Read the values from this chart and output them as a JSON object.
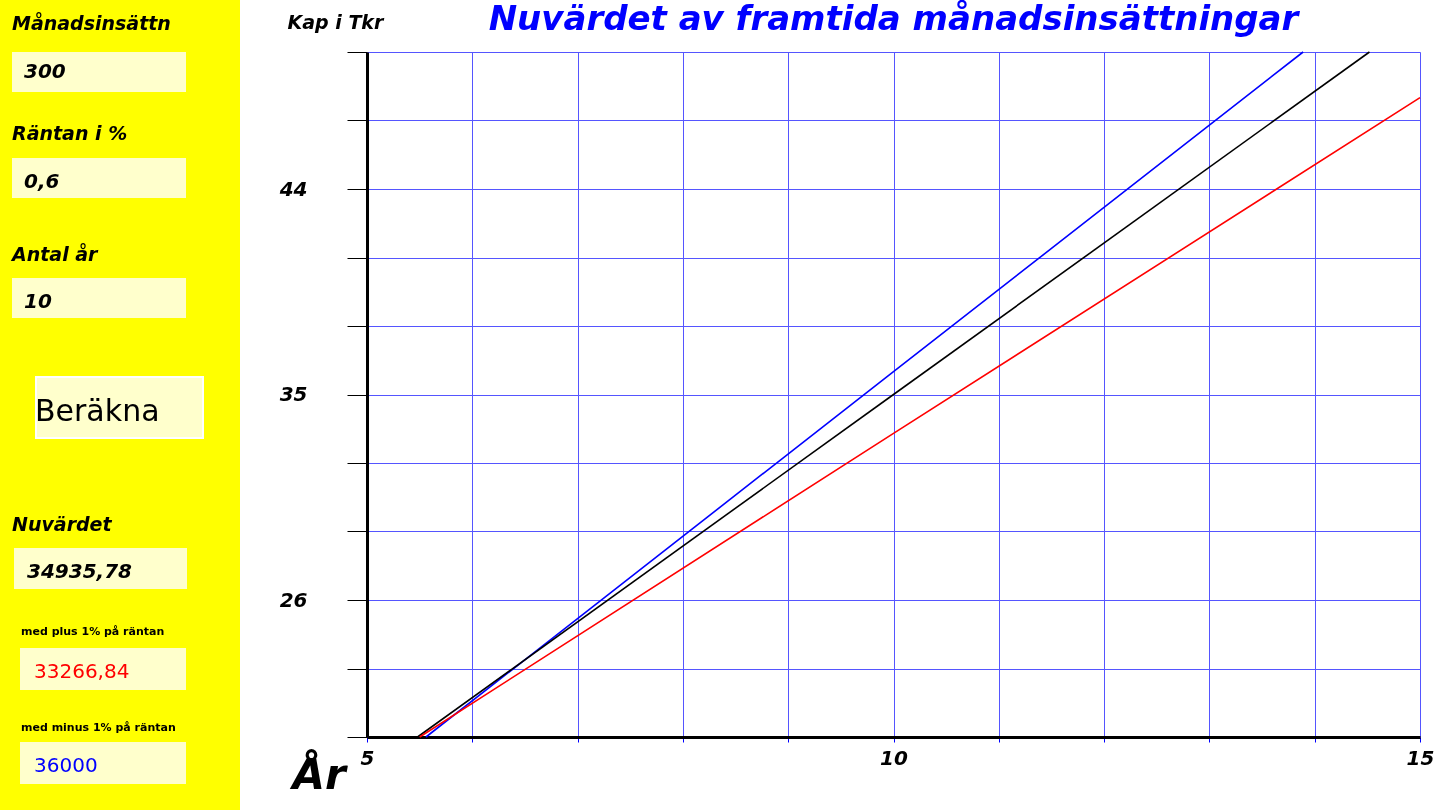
{
  "chart_data": {
    "type": "line",
    "title": "Nuvärdet av framtida månadsinsättningar",
    "xlabel": "År",
    "ylabel": "Kap i Tkr",
    "xlim": [
      5,
      15
    ],
    "ylim": [
      20,
      50
    ],
    "xticks": [
      5,
      {
        "value": 6,
        "label": null
      },
      {
        "value": 7,
        "label": null
      },
      {
        "value": 8,
        "label": null
      },
      {
        "value": 9,
        "label": null
      },
      10,
      {
        "value": 11,
        "label": null
      },
      {
        "value": 12,
        "label": null
      },
      {
        "value": 13,
        "label": null
      },
      {
        "value": 14,
        "label": null
      },
      15
    ],
    "yticks": [
      {
        "value": 20,
        "label": null
      },
      {
        "value": 23,
        "label": null
      },
      26,
      {
        "value": 29,
        "label": null
      },
      {
        "value": 32,
        "label": null
      },
      35,
      {
        "value": 38,
        "label": null
      },
      {
        "value": 41,
        "label": null
      },
      44,
      {
        "value": 47,
        "label": null
      },
      {
        "value": 50,
        "label": null
      }
    ],
    "grid": true,
    "legend": false,
    "marker": "none",
    "line_style": "solid",
    "series": [
      {
        "color": "#0000ff",
        "x": [
          5.56,
          10,
          13.89
        ],
        "values": [
          20,
          36.0,
          50
        ]
      },
      {
        "color": "#000000",
        "x": [
          5.48,
          10,
          14.52
        ],
        "values": [
          20,
          35.0,
          50
        ]
      },
      {
        "color": "#ff0000",
        "x": [
          5.5,
          10,
          15
        ],
        "values": [
          20,
          33.3,
          48.0
        ]
      }
    ],
    "annotations": [
      "Månadsinsättn",
      "300",
      "Räntan i %",
      "0,6",
      "Antal år",
      "10",
      "Beräkna",
      "Nuvärdet",
      "34935,78",
      "med plus 1% på räntan",
      "33266,84",
      "med minus 1% på räntan",
      "36000"
    ]
  }
}
